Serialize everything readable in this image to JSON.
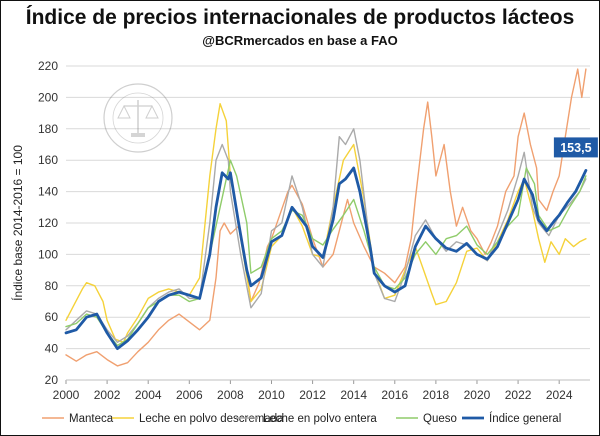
{
  "header": {
    "title": "Índice de precios internacionales de productos lácteos",
    "subtitle": "@BCRmercados en base a FAO"
  },
  "watermark": {
    "text": "BOLSA DE COMERCIO DE ROSARIO"
  },
  "callout": {
    "value": "153,5",
    "color": "#1f5aa6"
  },
  "chart_data": {
    "type": "line",
    "title": "Índice de precios internacionales de productos lácteos",
    "ylabel": "Índice base 2014-2016 = 100",
    "xlim": [
      2000,
      2025.5
    ],
    "ylim": [
      20,
      220
    ],
    "x_ticks": [
      "2000",
      "2002",
      "2004",
      "2006",
      "2008",
      "2010",
      "2012",
      "2014",
      "2016",
      "2018",
      "2020",
      "2022",
      "2024"
    ],
    "y_ticks": [
      "20",
      "40",
      "60",
      "80",
      "100",
      "120",
      "140",
      "160",
      "180",
      "200",
      "220"
    ],
    "grid": true,
    "legend_position": "bottom",
    "series": [
      {
        "name": "Manteca",
        "color": "#f0a070",
        "width": 1.4,
        "points": [
          [
            2000,
            36
          ],
          [
            2000.5,
            32
          ],
          [
            2001,
            36
          ],
          [
            2001.5,
            38
          ],
          [
            2002,
            33
          ],
          [
            2002.5,
            29
          ],
          [
            2003,
            31
          ],
          [
            2003.5,
            38
          ],
          [
            2004,
            44
          ],
          [
            2004.5,
            52
          ],
          [
            2005,
            58
          ],
          [
            2005.5,
            62
          ],
          [
            2006,
            57
          ],
          [
            2006.5,
            52
          ],
          [
            2007,
            58
          ],
          [
            2007.3,
            85
          ],
          [
            2007.5,
            115
          ],
          [
            2007.7,
            120
          ],
          [
            2008,
            113
          ],
          [
            2008.4,
            118
          ],
          [
            2008.7,
            98
          ],
          [
            2009,
            70
          ],
          [
            2009.4,
            82
          ],
          [
            2009.8,
            105
          ],
          [
            2010,
            110
          ],
          [
            2010.4,
            125
          ],
          [
            2010.8,
            140
          ],
          [
            2011,
            144
          ],
          [
            2011.5,
            132
          ],
          [
            2012,
            110
          ],
          [
            2012.5,
            92
          ],
          [
            2013,
            100
          ],
          [
            2013.3,
            115
          ],
          [
            2013.7,
            135
          ],
          [
            2014,
            120
          ],
          [
            2014.5,
            105
          ],
          [
            2015,
            92
          ],
          [
            2015.5,
            88
          ],
          [
            2016,
            82
          ],
          [
            2016.5,
            92
          ],
          [
            2016.8,
            110
          ],
          [
            2017,
            135
          ],
          [
            2017.4,
            180
          ],
          [
            2017.6,
            197
          ],
          [
            2017.8,
            175
          ],
          [
            2018,
            150
          ],
          [
            2018.4,
            170
          ],
          [
            2018.7,
            140
          ],
          [
            2019,
            118
          ],
          [
            2019.3,
            130
          ],
          [
            2019.7,
            115
          ],
          [
            2020,
            110
          ],
          [
            2020.4,
            100
          ],
          [
            2020.7,
            108
          ],
          [
            2021,
            118
          ],
          [
            2021.4,
            140
          ],
          [
            2021.8,
            150
          ],
          [
            2022,
            175
          ],
          [
            2022.3,
            190
          ],
          [
            2022.6,
            170
          ],
          [
            2022.9,
            155
          ],
          [
            2023,
            135
          ],
          [
            2023.4,
            128
          ],
          [
            2023.7,
            140
          ],
          [
            2024,
            150
          ],
          [
            2024.3,
            175
          ],
          [
            2024.6,
            200
          ],
          [
            2024.9,
            218
          ],
          [
            2025.1,
            200
          ],
          [
            2025.3,
            218
          ]
        ]
      },
      {
        "name": "Leche en polvo descremada",
        "color": "#f5d23a",
        "width": 1.4,
        "points": [
          [
            2000,
            58
          ],
          [
            2000.4,
            68
          ],
          [
            2000.8,
            78
          ],
          [
            2001,
            82
          ],
          [
            2001.4,
            80
          ],
          [
            2001.8,
            70
          ],
          [
            2002,
            58
          ],
          [
            2002.4,
            46
          ],
          [
            2002.8,
            44
          ],
          [
            2003,
            50
          ],
          [
            2003.5,
            60
          ],
          [
            2004,
            72
          ],
          [
            2004.5,
            76
          ],
          [
            2005,
            78
          ],
          [
            2005.5,
            76
          ],
          [
            2006,
            74
          ],
          [
            2006.5,
            85
          ],
          [
            2007,
            150
          ],
          [
            2007.3,
            180
          ],
          [
            2007.5,
            196
          ],
          [
            2007.8,
            185
          ],
          [
            2008,
            150
          ],
          [
            2008.5,
            110
          ],
          [
            2009,
            70
          ],
          [
            2009.5,
            78
          ],
          [
            2010,
            105
          ],
          [
            2010.5,
            112
          ],
          [
            2011,
            130
          ],
          [
            2011.5,
            118
          ],
          [
            2012,
            100
          ],
          [
            2012.5,
            98
          ],
          [
            2013,
            130
          ],
          [
            2013.5,
            160
          ],
          [
            2014,
            170
          ],
          [
            2014.5,
            135
          ],
          [
            2015,
            90
          ],
          [
            2015.5,
            72
          ],
          [
            2016,
            74
          ],
          [
            2016.5,
            90
          ],
          [
            2017,
            105
          ],
          [
            2017.4,
            90
          ],
          [
            2017.8,
            75
          ],
          [
            2018,
            68
          ],
          [
            2018.5,
            70
          ],
          [
            2019,
            82
          ],
          [
            2019.5,
            102
          ],
          [
            2020,
            104
          ],
          [
            2020.5,
            96
          ],
          [
            2021,
            108
          ],
          [
            2021.5,
            122
          ],
          [
            2022,
            140
          ],
          [
            2022.3,
            148
          ],
          [
            2022.7,
            128
          ],
          [
            2023,
            110
          ],
          [
            2023.3,
            95
          ],
          [
            2023.6,
            108
          ],
          [
            2024,
            100
          ],
          [
            2024.3,
            110
          ],
          [
            2024.7,
            105
          ],
          [
            2025,
            108
          ],
          [
            2025.3,
            110
          ]
        ]
      },
      {
        "name": "Leche en polvo entera",
        "color": "#aaaaaa",
        "width": 1.4,
        "points": [
          [
            2000,
            52
          ],
          [
            2000.5,
            58
          ],
          [
            2001,
            64
          ],
          [
            2001.5,
            62
          ],
          [
            2002,
            52
          ],
          [
            2002.5,
            44
          ],
          [
            2003,
            48
          ],
          [
            2003.5,
            56
          ],
          [
            2004,
            66
          ],
          [
            2004.5,
            72
          ],
          [
            2005,
            76
          ],
          [
            2005.5,
            78
          ],
          [
            2006,
            72
          ],
          [
            2006.5,
            72
          ],
          [
            2007,
            120
          ],
          [
            2007.3,
            160
          ],
          [
            2007.6,
            170
          ],
          [
            2007.9,
            160
          ],
          [
            2008,
            140
          ],
          [
            2008.5,
            100
          ],
          [
            2009,
            66
          ],
          [
            2009.5,
            75
          ],
          [
            2010,
            115
          ],
          [
            2010.5,
            120
          ],
          [
            2011,
            150
          ],
          [
            2011.5,
            130
          ],
          [
            2012,
            100
          ],
          [
            2012.5,
            92
          ],
          [
            2013,
            130
          ],
          [
            2013.3,
            175
          ],
          [
            2013.6,
            170
          ],
          [
            2014,
            180
          ],
          [
            2014.3,
            160
          ],
          [
            2014.8,
            105
          ],
          [
            2015,
            88
          ],
          [
            2015.5,
            72
          ],
          [
            2016,
            70
          ],
          [
            2016.5,
            88
          ],
          [
            2017,
            112
          ],
          [
            2017.5,
            122
          ],
          [
            2018,
            110
          ],
          [
            2018.5,
            102
          ],
          [
            2019,
            108
          ],
          [
            2019.5,
            106
          ],
          [
            2020,
            100
          ],
          [
            2020.5,
            96
          ],
          [
            2021,
            112
          ],
          [
            2021.5,
            128
          ],
          [
            2022,
            150
          ],
          [
            2022.3,
            165
          ],
          [
            2022.7,
            130
          ],
          [
            2023,
            120
          ],
          [
            2023.5,
            112
          ],
          [
            2024,
            125
          ],
          [
            2024.5,
            132
          ],
          [
            2025,
            140
          ],
          [
            2025.3,
            148
          ]
        ]
      },
      {
        "name": "Queso",
        "color": "#8fcc6a",
        "width": 1.4,
        "points": [
          [
            2000,
            54
          ],
          [
            2000.5,
            56
          ],
          [
            2001,
            62
          ],
          [
            2001.5,
            60
          ],
          [
            2002,
            50
          ],
          [
            2002.5,
            42
          ],
          [
            2003,
            46
          ],
          [
            2003.5,
            56
          ],
          [
            2004,
            66
          ],
          [
            2004.5,
            70
          ],
          [
            2005,
            74
          ],
          [
            2005.5,
            74
          ],
          [
            2006,
            70
          ],
          [
            2006.5,
            72
          ],
          [
            2007,
            100
          ],
          [
            2007.5,
            130
          ],
          [
            2008,
            160
          ],
          [
            2008.3,
            150
          ],
          [
            2008.8,
            120
          ],
          [
            2009,
            88
          ],
          [
            2009.5,
            92
          ],
          [
            2010,
            110
          ],
          [
            2010.5,
            115
          ],
          [
            2011,
            128
          ],
          [
            2011.5,
            125
          ],
          [
            2012,
            110
          ],
          [
            2012.5,
            106
          ],
          [
            2013,
            116
          ],
          [
            2013.5,
            125
          ],
          [
            2014,
            135
          ],
          [
            2014.5,
            115
          ],
          [
            2015,
            92
          ],
          [
            2015.5,
            80
          ],
          [
            2016,
            78
          ],
          [
            2016.5,
            85
          ],
          [
            2017,
            100
          ],
          [
            2017.5,
            108
          ],
          [
            2018,
            100
          ],
          [
            2018.5,
            110
          ],
          [
            2019,
            112
          ],
          [
            2019.5,
            118
          ],
          [
            2020,
            106
          ],
          [
            2020.5,
            100
          ],
          [
            2021,
            108
          ],
          [
            2021.5,
            118
          ],
          [
            2022,
            125
          ],
          [
            2022.4,
            155
          ],
          [
            2022.8,
            145
          ],
          [
            2023,
            125
          ],
          [
            2023.5,
            115
          ],
          [
            2024,
            118
          ],
          [
            2024.5,
            130
          ],
          [
            2025,
            140
          ],
          [
            2025.3,
            150
          ]
        ]
      },
      {
        "name": "Índice general",
        "color": "#1f5aa6",
        "width": 2.8,
        "points": [
          [
            2000,
            50
          ],
          [
            2000.5,
            52
          ],
          [
            2001,
            60
          ],
          [
            2001.5,
            62
          ],
          [
            2002,
            50
          ],
          [
            2002.5,
            40
          ],
          [
            2003,
            45
          ],
          [
            2003.5,
            52
          ],
          [
            2004,
            60
          ],
          [
            2004.5,
            70
          ],
          [
            2005,
            74
          ],
          [
            2005.5,
            76
          ],
          [
            2006,
            74
          ],
          [
            2006.5,
            72
          ],
          [
            2007,
            100
          ],
          [
            2007.3,
            130
          ],
          [
            2007.6,
            152
          ],
          [
            2007.9,
            148
          ],
          [
            2008,
            152
          ],
          [
            2008.4,
            120
          ],
          [
            2008.8,
            90
          ],
          [
            2009,
            80
          ],
          [
            2009.5,
            85
          ],
          [
            2010,
            108
          ],
          [
            2010.5,
            112
          ],
          [
            2011,
            130
          ],
          [
            2011.3,
            125
          ],
          [
            2011.7,
            118
          ],
          [
            2012,
            105
          ],
          [
            2012.5,
            98
          ],
          [
            2013,
            122
          ],
          [
            2013.3,
            145
          ],
          [
            2013.6,
            148
          ],
          [
            2014,
            155
          ],
          [
            2014.3,
            140
          ],
          [
            2014.8,
            105
          ],
          [
            2015,
            88
          ],
          [
            2015.5,
            80
          ],
          [
            2016,
            76
          ],
          [
            2016.5,
            80
          ],
          [
            2017,
            105
          ],
          [
            2017.5,
            118
          ],
          [
            2018,
            110
          ],
          [
            2018.5,
            104
          ],
          [
            2019,
            102
          ],
          [
            2019.5,
            107
          ],
          [
            2020,
            100
          ],
          [
            2020.5,
            97
          ],
          [
            2021,
            105
          ],
          [
            2021.5,
            120
          ],
          [
            2022,
            135
          ],
          [
            2022.3,
            148
          ],
          [
            2022.7,
            138
          ],
          [
            2023,
            122
          ],
          [
            2023.4,
            115
          ],
          [
            2023.8,
            122
          ],
          [
            2024,
            125
          ],
          [
            2024.4,
            133
          ],
          [
            2024.8,
            140
          ],
          [
            2025.1,
            148
          ],
          [
            2025.3,
            153.5
          ]
        ]
      }
    ]
  }
}
